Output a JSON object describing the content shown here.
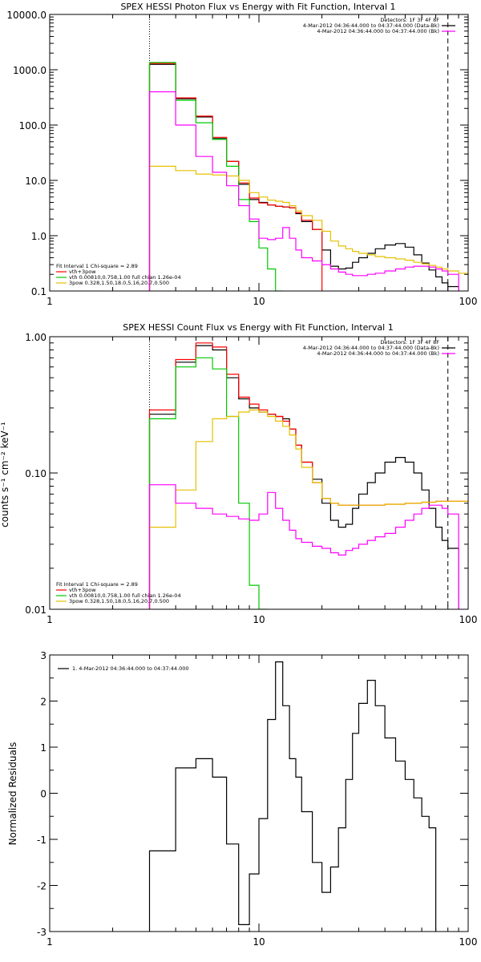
{
  "chart_data": [
    {
      "type": "line",
      "title": "SPEX HESSI Photon Flux vs Energy with Fit Function, Interval 1",
      "xlabel": "",
      "ylabel": "",
      "xscale": "log",
      "yscale": "log",
      "xlim": [
        1,
        100
      ],
      "ylim": [
        0.1,
        10000
      ],
      "x_tick_labels": [
        "1",
        "10",
        "100"
      ],
      "y_tick_labels": [
        "0.1",
        "1.0",
        "10.0",
        "100.0",
        "1000.0",
        "10000.0"
      ],
      "vlines": {
        "dotted": 3.0,
        "dashed": 80
      },
      "legend_right": {
        "lines": [
          {
            "text": "Detectors: 1F 3F 4F 8F",
            "color": ""
          },
          {
            "text": "4-Mar-2012 04:36:44.000 to 04:37:44.000 (Data-Bk)",
            "color": "#000000"
          },
          {
            "text": "4-Mar-2012 04:36:44.000 to 04:37:44.000 (Bk)",
            "color": "#ff00ff"
          }
        ]
      },
      "legend_left": {
        "lines": [
          {
            "text": "Fit Interval 1    Chi-square = 2.89",
            "color": ""
          },
          {
            "text": "vth+3pow",
            "color": "#ff0000"
          },
          {
            "text": "vth 0.00810,0.758,1.00   full chian 1.26e-04",
            "color": "#00c800"
          },
          {
            "text": "3pow 0.328,1.50,18.0,5.16,20.7,0.500",
            "color": "#e6c000"
          }
        ]
      },
      "edges": [
        3.0,
        4.0,
        5.0,
        6.0,
        7.0,
        8.0,
        9.0,
        10.0,
        11.0,
        12.0,
        13.0,
        14.0,
        15.0,
        16.0,
        18.0,
        20.0,
        22.0,
        24.0,
        26.0,
        28.0,
        30.0,
        33.0,
        36.0,
        40.0,
        45.0,
        50.0,
        55.0,
        60.0,
        65.0,
        70.0,
        75.0,
        80.0,
        90.0,
        100.0
      ],
      "series": [
        {
          "key": "data",
          "color": "#000000",
          "values": [
            1250,
            300,
            140,
            57,
            22,
            8.5,
            4.5,
            4.0,
            3.6,
            3.4,
            3.3,
            3.2,
            2.5,
            1.8,
            1.3,
            0.55,
            0.28,
            0.25,
            0.26,
            0.33,
            0.4,
            0.48,
            0.58,
            0.68,
            0.72,
            0.62,
            0.45,
            0.32,
            0.24,
            0.18,
            0.14,
            0.12,
            null
          ]
        },
        {
          "key": "model",
          "color": "#ff0000",
          "values": [
            1300,
            310,
            145,
            60,
            22,
            9.0,
            4.8,
            3.9,
            3.6,
            3.4,
            3.3,
            3.2,
            2.6,
            1.9,
            1.3,
            null,
            null,
            null,
            null,
            null,
            null,
            null,
            null,
            null,
            null,
            null,
            null,
            null,
            null,
            null,
            null,
            null,
            null
          ]
        },
        {
          "key": "vth",
          "color": "#00c800",
          "values": [
            1350,
            280,
            110,
            55,
            18,
            4.5,
            1.8,
            0.6,
            0.25,
            0.1,
            null,
            null,
            null,
            null,
            null,
            null,
            null,
            null,
            null,
            null,
            null,
            null,
            null,
            null,
            null,
            null,
            null,
            null,
            null,
            null,
            null,
            null,
            null
          ]
        },
        {
          "key": "3pow",
          "color": "#e6c000",
          "values": [
            18,
            15,
            13,
            12.5,
            12,
            10,
            6.0,
            5.0,
            4.4,
            4.2,
            4.0,
            3.5,
            2.8,
            2.3,
            1.9,
            1.2,
            0.8,
            0.65,
            0.58,
            0.52,
            0.48,
            0.45,
            0.42,
            0.4,
            0.38,
            0.36,
            0.33,
            0.31,
            0.29,
            0.27,
            0.25,
            0.23,
            0.21
          ]
        },
        {
          "key": "bk",
          "color": "#ff00ff",
          "values": [
            400,
            100,
            27,
            14,
            8.0,
            3.5,
            2.0,
            0.9,
            0.85,
            0.9,
            1.4,
            0.9,
            0.55,
            0.4,
            0.35,
            0.3,
            0.25,
            0.22,
            0.2,
            0.19,
            0.19,
            0.2,
            0.21,
            0.23,
            0.25,
            0.27,
            0.28,
            0.28,
            0.27,
            0.25,
            0.23,
            0.2,
            null
          ]
        }
      ]
    },
    {
      "type": "line",
      "title": "SPEX HESSI Count Flux vs Energy with Fit Function, Interval 1",
      "xlabel": "",
      "ylabel": "counts s⁻¹ cm⁻² keV⁻¹",
      "xscale": "log",
      "yscale": "log",
      "xlim": [
        1,
        100
      ],
      "ylim": [
        0.01,
        1.0
      ],
      "x_tick_labels": [
        "1",
        "10",
        "100"
      ],
      "y_tick_labels": [
        "0.01",
        "0.10",
        "1.00"
      ],
      "vlines": {
        "dotted": 3.0,
        "dashed": 80
      },
      "legend_right": {
        "lines": [
          {
            "text": "Detectors: 1F 3F 4F 8F",
            "color": ""
          },
          {
            "text": "4-Mar-2012 04:36:44.000 to 04:37:44.000 (Data-Bk)",
            "color": "#000000"
          },
          {
            "text": "4-Mar-2012 04:36:44.000 to 04:37:44.000 (Bk)",
            "color": "#ff00ff"
          }
        ]
      },
      "legend_left": {
        "lines": [
          {
            "text": "Fit Interval 1    Chi-square = 2.89",
            "color": ""
          },
          {
            "text": "vth+3pow",
            "color": "#ff0000"
          },
          {
            "text": "vth 0.00810,0.758,1.00   full chian 1.26e-04",
            "color": "#00c800"
          },
          {
            "text": "3pow 0.328,1.50,18.0,5.16,20.7,0.500",
            "color": "#e6c000"
          }
        ]
      },
      "edges": [
        3.0,
        4.0,
        5.0,
        6.0,
        7.0,
        8.0,
        9.0,
        10.0,
        11.0,
        12.0,
        13.0,
        14.0,
        15.0,
        16.0,
        18.0,
        20.0,
        22.0,
        24.0,
        26.0,
        28.0,
        30.0,
        33.0,
        36.0,
        40.0,
        45.0,
        50.0,
        55.0,
        60.0,
        65.0,
        70.0,
        75.0,
        80.0,
        90.0,
        100.0
      ],
      "series": [
        {
          "key": "data",
          "color": "#000000",
          "values": [
            0.27,
            0.65,
            0.86,
            0.8,
            0.5,
            0.35,
            0.3,
            0.28,
            0.27,
            0.26,
            0.25,
            0.21,
            0.16,
            0.12,
            0.09,
            0.06,
            0.045,
            0.04,
            0.042,
            0.055,
            0.07,
            0.085,
            0.1,
            0.12,
            0.13,
            0.12,
            0.1,
            0.075,
            0.055,
            0.04,
            0.032,
            0.028,
            null
          ]
        },
        {
          "key": "model",
          "color": "#ff0000",
          "values": [
            0.29,
            0.68,
            0.9,
            0.84,
            0.53,
            0.36,
            0.32,
            0.29,
            0.27,
            0.26,
            0.24,
            0.21,
            0.16,
            0.12,
            0.085,
            0.065,
            0.06,
            0.058,
            0.058,
            0.058,
            0.058,
            0.058,
            0.058,
            0.059,
            0.059,
            0.06,
            0.06,
            0.061,
            0.061,
            0.062,
            0.062,
            0.062,
            0.062
          ]
        },
        {
          "key": "vth",
          "color": "#00c800",
          "values": [
            0.25,
            0.6,
            0.7,
            0.58,
            0.26,
            0.06,
            0.015,
            0.01,
            null,
            null,
            null,
            null,
            null,
            null,
            null,
            null,
            null,
            null,
            null,
            null,
            null,
            null,
            null,
            null,
            null,
            null,
            null,
            null,
            null,
            null,
            null,
            null,
            null
          ]
        },
        {
          "key": "3pow",
          "color": "#e6c000",
          "values": [
            0.04,
            0.075,
            0.17,
            0.25,
            0.26,
            0.28,
            0.29,
            0.28,
            0.26,
            0.24,
            0.22,
            0.19,
            0.15,
            0.11,
            0.085,
            0.065,
            0.06,
            0.058,
            0.058,
            0.058,
            0.058,
            0.058,
            0.058,
            0.059,
            0.059,
            0.06,
            0.06,
            0.061,
            0.061,
            0.062,
            0.062,
            0.062,
            0.062
          ]
        },
        {
          "key": "bk",
          "color": "#ff00ff",
          "values": [
            0.082,
            0.06,
            0.055,
            0.05,
            0.048,
            0.046,
            0.045,
            0.05,
            0.072,
            0.055,
            0.045,
            0.038,
            0.033,
            0.031,
            0.029,
            0.028,
            0.026,
            0.025,
            0.027,
            0.028,
            0.03,
            0.032,
            0.034,
            0.036,
            0.04,
            0.045,
            0.05,
            0.055,
            0.058,
            0.058,
            0.055,
            0.05,
            null
          ]
        }
      ]
    },
    {
      "type": "line",
      "title": "",
      "xlabel": "",
      "ylabel": "Normalized Residuals",
      "xscale": "log",
      "yscale": "linear",
      "xlim": [
        1,
        100
      ],
      "ylim": [
        -3,
        3
      ],
      "x_tick_labels": [
        "1",
        "10",
        "100"
      ],
      "y_tick_labels": [
        "-3",
        "-2",
        "-1",
        "0",
        "1",
        "2",
        "3"
      ],
      "legend": {
        "text": "1.  4-Mar-2012 04:36:44.000 to 04:37:44.000",
        "color": "#000000"
      },
      "edges": [
        3.0,
        4.0,
        5.0,
        6.0,
        7.0,
        8.0,
        9.0,
        10.0,
        11.0,
        12.0,
        13.0,
        14.0,
        15.0,
        16.0,
        18.0,
        20.0,
        22.0,
        24.0,
        26.0,
        28.0,
        30.0,
        33.0,
        36.0,
        40.0,
        45.0,
        50.0,
        55.0,
        60.0,
        65.0,
        70.0,
        75.0,
        80.0
      ],
      "series": [
        {
          "key": "residuals",
          "color": "#000000",
          "values": [
            -1.25,
            0.55,
            0.75,
            0.35,
            -1.1,
            -2.85,
            -1.75,
            -0.55,
            1.6,
            2.85,
            1.9,
            0.75,
            0.35,
            -0.4,
            -1.5,
            -2.15,
            -1.6,
            -0.75,
            0.3,
            1.3,
            1.95,
            2.45,
            1.9,
            1.2,
            0.7,
            0.3,
            -0.1,
            -0.5,
            -0.75,
            null,
            null
          ]
        }
      ]
    }
  ]
}
